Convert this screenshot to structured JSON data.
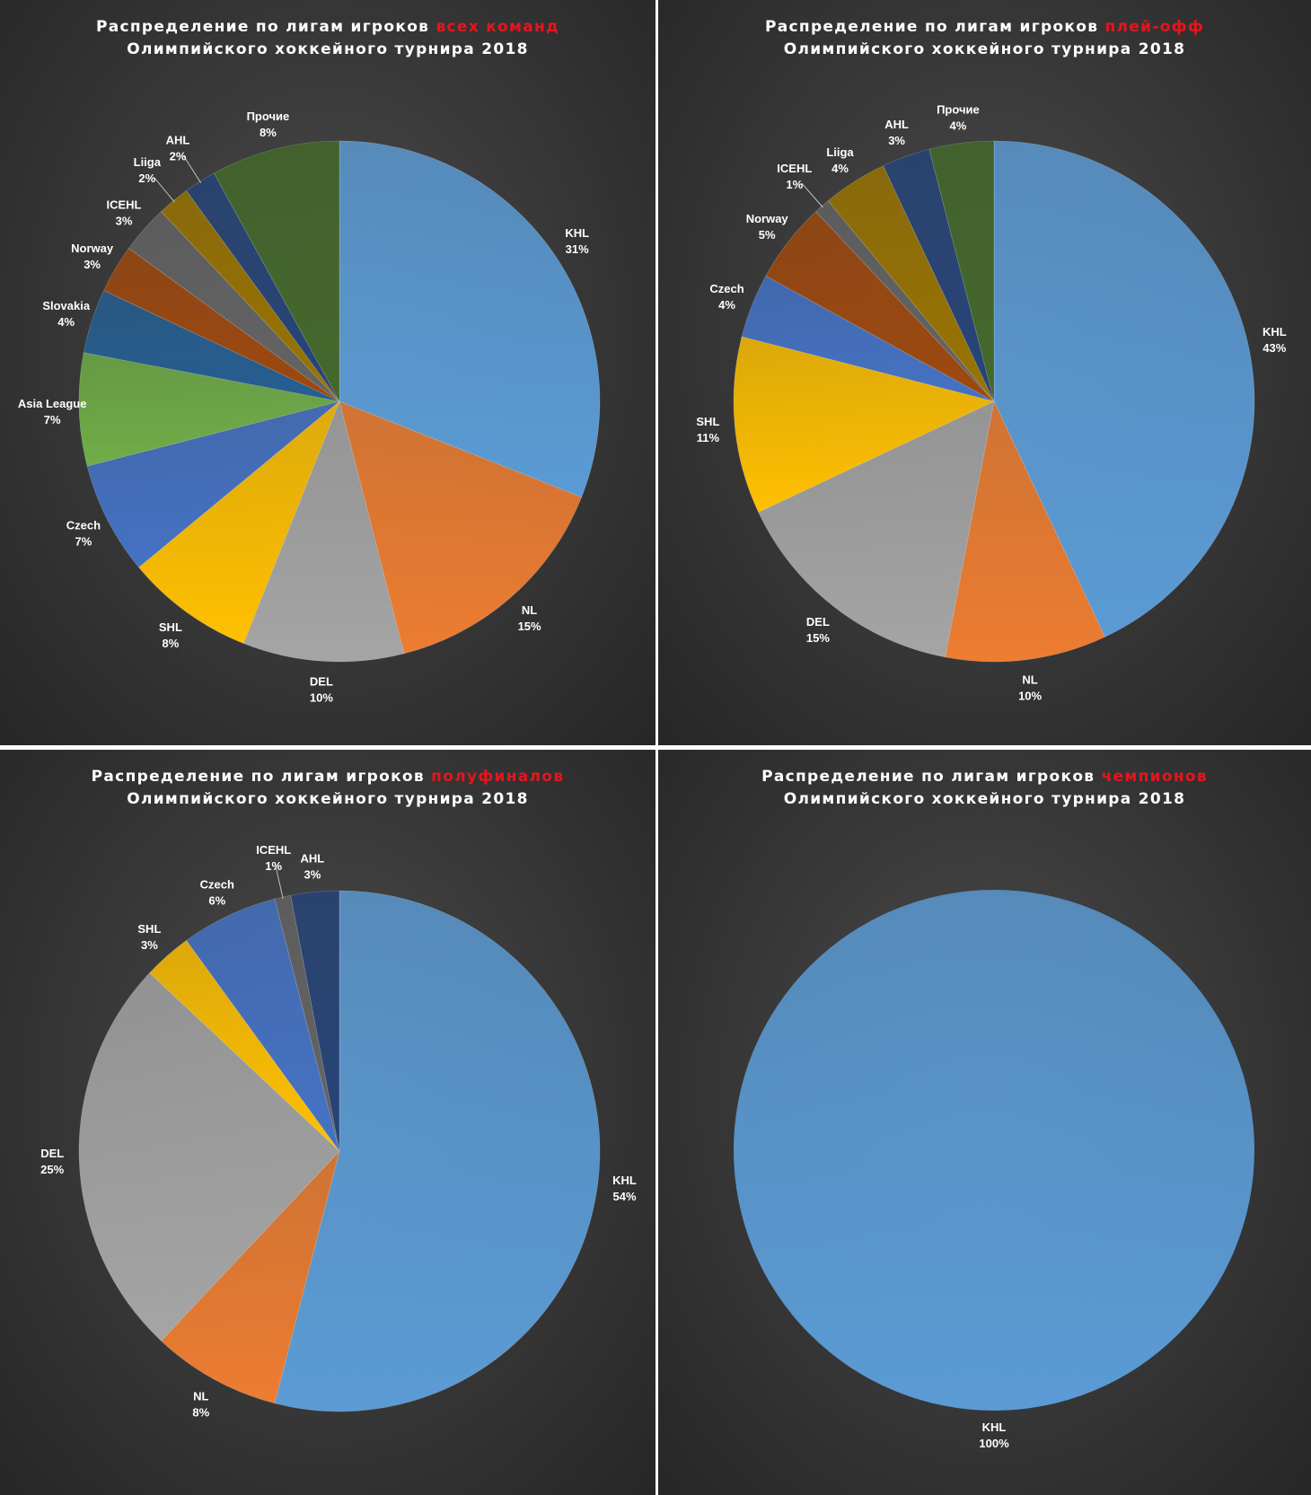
{
  "chart_data": [
    {
      "type": "pie",
      "title_prefix": "Распределение по лигам игроков",
      "title_highlight": "всех команд",
      "title_line2": "Олимпийского хоккейного турнира 2018",
      "slices": [
        {
          "label": "KHL",
          "value": 31,
          "pct_text": "31%",
          "color": "#5b9bd5"
        },
        {
          "label": "NL",
          "value": 15,
          "pct_text": "15%",
          "color": "#ed7d31"
        },
        {
          "label": "DEL",
          "value": 10,
          "pct_text": "10%",
          "color": "#a5a5a5"
        },
        {
          "label": "SHL",
          "value": 8,
          "pct_text": "8%",
          "color": "#ffc000"
        },
        {
          "label": "Czech",
          "value": 7,
          "pct_text": "7%",
          "color": "#4472c4"
        },
        {
          "label": "Asia League",
          "value": 7,
          "pct_text": "7%",
          "color": "#70ad47"
        },
        {
          "label": "Slovakia",
          "value": 4,
          "pct_text": "4%",
          "color": "#255e91"
        },
        {
          "label": "Norway",
          "value": 3,
          "pct_text": "3%",
          "color": "#9e480e"
        },
        {
          "label": "ICEHL",
          "value": 3,
          "pct_text": "3%",
          "color": "#636363"
        },
        {
          "label": "Liiga",
          "value": 2,
          "pct_text": "2%",
          "color": "#997300"
        },
        {
          "label": "AHL",
          "value": 2,
          "pct_text": "2%",
          "color": "#264478"
        },
        {
          "label": "Прочие",
          "value": 8,
          "pct_text": "8%",
          "color": "#43682b"
        }
      ]
    },
    {
      "type": "pie",
      "title_prefix": "Распределение по лигам игроков",
      "title_highlight": "плей-офф",
      "title_line2": "Олимпийского хоккейного турнира 2018",
      "slices": [
        {
          "label": "KHL",
          "value": 43,
          "pct_text": "43%",
          "color": "#5b9bd5"
        },
        {
          "label": "NL",
          "value": 10,
          "pct_text": "10%",
          "color": "#ed7d31"
        },
        {
          "label": "DEL",
          "value": 15,
          "pct_text": "15%",
          "color": "#a5a5a5"
        },
        {
          "label": "SHL",
          "value": 11,
          "pct_text": "11%",
          "color": "#ffc000"
        },
        {
          "label": "Czech",
          "value": 4,
          "pct_text": "4%",
          "color": "#4472c4"
        },
        {
          "label": "Norway",
          "value": 5,
          "pct_text": "5%",
          "color": "#9e480e"
        },
        {
          "label": "ICEHL",
          "value": 1,
          "pct_text": "1%",
          "color": "#636363"
        },
        {
          "label": "Liiga",
          "value": 4,
          "pct_text": "4%",
          "color": "#997300"
        },
        {
          "label": "AHL",
          "value": 3,
          "pct_text": "3%",
          "color": "#264478"
        },
        {
          "label": "Прочие",
          "value": 4,
          "pct_text": "4%",
          "color": "#43682b"
        }
      ]
    },
    {
      "type": "pie",
      "title_prefix": "Распределение по лигам игроков",
      "title_highlight": "полуфиналов",
      "title_line2": "Олимпийского хоккейного турнира 2018",
      "slices": [
        {
          "label": "KHL",
          "value": 54,
          "pct_text": "54%",
          "color": "#5b9bd5"
        },
        {
          "label": "NL",
          "value": 8,
          "pct_text": "8%",
          "color": "#ed7d31"
        },
        {
          "label": "DEL",
          "value": 25,
          "pct_text": "25%",
          "color": "#a5a5a5"
        },
        {
          "label": "SHL",
          "value": 3,
          "pct_text": "3%",
          "color": "#ffc000"
        },
        {
          "label": "Czech",
          "value": 6,
          "pct_text": "6%",
          "color": "#4472c4"
        },
        {
          "label": "ICEHL",
          "value": 1,
          "pct_text": "1%",
          "color": "#636363"
        },
        {
          "label": "AHL",
          "value": 3,
          "pct_text": "3%",
          "color": "#264478"
        }
      ]
    },
    {
      "type": "pie",
      "title_prefix": "Распределение по лигам игроков",
      "title_highlight": "чемпионов",
      "title_line2": "Олимпийского хоккейного турнира 2018",
      "slices": [
        {
          "label": "KHL",
          "value": 100,
          "pct_text": "100%",
          "color": "#5b9bd5"
        }
      ]
    }
  ]
}
